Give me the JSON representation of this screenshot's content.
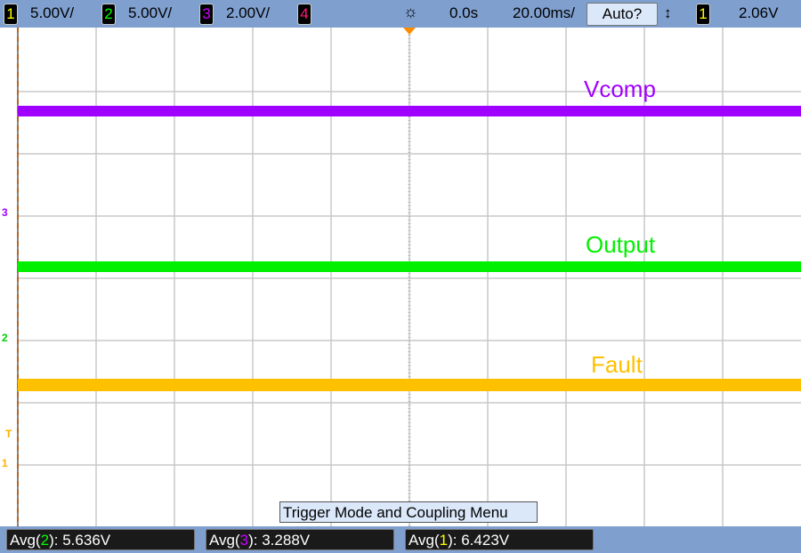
{
  "header": {
    "channels": [
      {
        "num": "1",
        "scale": "5.00V/",
        "color": "#ffff00"
      },
      {
        "num": "2",
        "scale": "5.00V/",
        "color": "#00ff00"
      },
      {
        "num": "3",
        "scale": "2.00V/",
        "color": "#cc00ff"
      },
      {
        "num": "4",
        "scale": "",
        "color": "#ff1a75"
      }
    ],
    "run_icon": "acquisition-sun-icon",
    "delay": "0.0s",
    "timebase": "20.00ms/",
    "trigger_mode": "Auto?",
    "trigger_slope_icon": "up-down-arrow-icon",
    "trigger_source": "1",
    "trigger_level": "2.06V"
  },
  "traces": [
    {
      "label": "Vcomp",
      "color": "#a000ff",
      "marker": "3"
    },
    {
      "label": "Output",
      "color": "#00f000",
      "marker": "2"
    },
    {
      "label": "Fault",
      "color": "#ffc000",
      "marker": "1"
    }
  ],
  "trigger_marker": "T",
  "menu_label": "Trigger Mode and Coupling Menu",
  "measurements": [
    {
      "prefix": "Avg(",
      "ch": "2",
      "suffix": "): 5.636V",
      "color": "#00ff00"
    },
    {
      "prefix": "Avg(",
      "ch": "3",
      "suffix": "): 3.288V",
      "color": "#cc00ff"
    },
    {
      "prefix": "Avg(",
      "ch": "1",
      "suffix": "): 6.423V",
      "color": "#ffff00"
    }
  ]
}
